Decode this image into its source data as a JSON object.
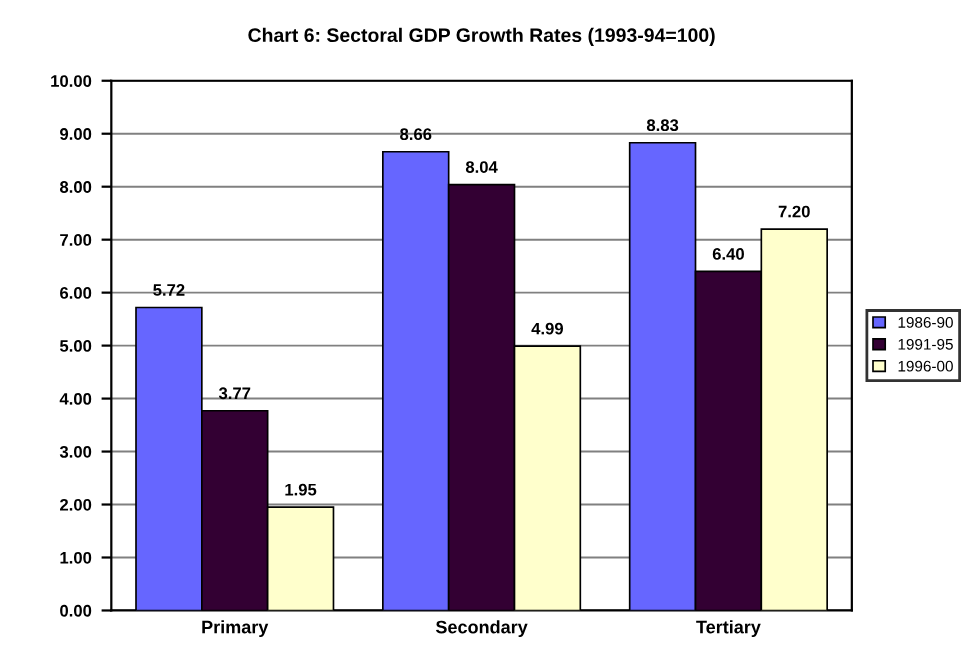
{
  "chart_data": {
    "type": "bar",
    "title": "Chart 6: Sectoral GDP Growth Rates (1993-94=100)",
    "categories": [
      "Primary",
      "Secondary",
      "Tertiary"
    ],
    "series": [
      {
        "name": "1986-90",
        "color": "#6666ff",
        "values": [
          5.72,
          8.66,
          8.83
        ],
        "value_labels": [
          "5.72",
          "8.66",
          "8.83"
        ]
      },
      {
        "name": "1991-95",
        "color": "#330033",
        "values": [
          3.77,
          8.04,
          6.4
        ],
        "value_labels": [
          "3.77",
          "8.04",
          "6.40"
        ]
      },
      {
        "name": "1996-00",
        "color": "#ffffcc",
        "values": [
          1.95,
          4.99,
          7.2
        ],
        "value_labels": [
          "1.95",
          "4.99",
          "7.20"
        ]
      }
    ],
    "ylim": [
      0,
      10
    ],
    "yticks": [
      {
        "value": 0,
        "label": "0.00"
      },
      {
        "value": 1,
        "label": "1.00"
      },
      {
        "value": 2,
        "label": "2.00"
      },
      {
        "value": 3,
        "label": "3.00"
      },
      {
        "value": 4,
        "label": "4.00"
      },
      {
        "value": 5,
        "label": "5.00"
      },
      {
        "value": 6,
        "label": "6.00"
      },
      {
        "value": 7,
        "label": "7.00"
      },
      {
        "value": 8,
        "label": "8.00"
      },
      {
        "value": 9,
        "label": "9.00"
      },
      {
        "value": 10,
        "label": "10.00"
      }
    ],
    "grid": "y",
    "legend": "right"
  }
}
